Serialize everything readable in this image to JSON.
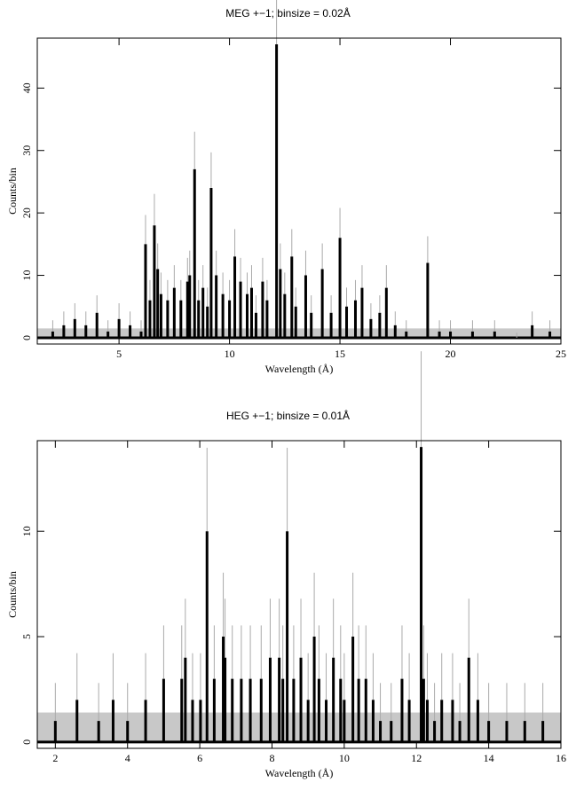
{
  "chart_data": [
    {
      "type": "line",
      "title": "MEG +−1; binsize = 0.02Å",
      "xlabel": "Wavelength (Å)",
      "ylabel": "Counts/bin",
      "xlim": [
        1.3,
        25
      ],
      "ylim": [
        -1,
        48
      ],
      "xticks": [
        5,
        10,
        15,
        20,
        25
      ],
      "yticks": [
        0,
        10,
        20,
        30,
        40
      ],
      "background_band": 1.5,
      "series": [
        {
          "x": [
            2.0,
            2.5,
            3.0,
            3.5,
            4.0,
            4.5,
            5.0,
            5.5,
            6.0,
            6.2,
            6.4,
            6.6,
            6.75,
            6.9,
            7.2,
            7.5,
            7.8,
            8.1,
            8.2,
            8.42,
            8.6,
            8.8,
            9.0,
            9.17,
            9.4,
            9.7,
            10.0,
            10.24,
            10.5,
            10.8,
            11.0,
            11.2,
            11.5,
            11.7,
            12.13,
            12.3,
            12.5,
            12.82,
            13.0,
            13.45,
            13.7,
            14.2,
            14.6,
            15.0,
            15.3,
            15.7,
            16.0,
            16.4,
            16.8,
            17.1,
            17.5,
            18.0,
            18.97,
            19.5,
            20.0,
            21.0,
            22.0,
            23.0,
            23.7,
            24.5
          ],
          "y": [
            1,
            2,
            3,
            2,
            4,
            1,
            3,
            2,
            1,
            15,
            6,
            18,
            11,
            7,
            6,
            8,
            6,
            9,
            10,
            27,
            6,
            8,
            5,
            24,
            10,
            7,
            6,
            13,
            9,
            7,
            8,
            4,
            9,
            6,
            47,
            11,
            7,
            13,
            5,
            10,
            4,
            11,
            4,
            16,
            5,
            6,
            8,
            3,
            4,
            8,
            2,
            1,
            12,
            1,
            1,
            1,
            1,
            0,
            2,
            1
          ]
        }
      ]
    },
    {
      "type": "line",
      "title": "HEG +−1; binsize = 0.01Å",
      "xlabel": "Wavelength (Å)",
      "ylabel": "Counts/bin",
      "xlim": [
        1.5,
        16
      ],
      "ylim": [
        -0.3,
        14.3
      ],
      "xticks": [
        2,
        4,
        6,
        8,
        10,
        12,
        14,
        16
      ],
      "yticks": [
        0,
        5,
        10
      ],
      "background_band": 1.4,
      "series": [
        {
          "x": [
            2.0,
            2.6,
            3.2,
            3.6,
            4.0,
            4.5,
            5.0,
            5.5,
            5.6,
            5.8,
            6.02,
            6.2,
            6.4,
            6.65,
            6.7,
            6.9,
            7.15,
            7.4,
            7.7,
            7.95,
            8.2,
            8.3,
            8.42,
            8.6,
            8.8,
            9.0,
            9.17,
            9.3,
            9.5,
            9.7,
            9.9,
            10.0,
            10.24,
            10.4,
            10.6,
            10.8,
            11.0,
            11.3,
            11.6,
            11.8,
            12.13,
            12.2,
            12.3,
            12.5,
            12.7,
            13.0,
            13.2,
            13.45,
            13.7,
            14.0,
            14.5,
            15.0,
            15.5
          ],
          "y": [
            1,
            2,
            1,
            2,
            1,
            2,
            3,
            3,
            4,
            2,
            2,
            10,
            3,
            5,
            4,
            3,
            3,
            3,
            3,
            4,
            4,
            3,
            10,
            3,
            4,
            2,
            5,
            3,
            2,
            4,
            3,
            2,
            5,
            3,
            3,
            2,
            1,
            1,
            3,
            2,
            14,
            3,
            2,
            1,
            2,
            2,
            1,
            4,
            2,
            1,
            1,
            1,
            1
          ]
        }
      ]
    }
  ]
}
